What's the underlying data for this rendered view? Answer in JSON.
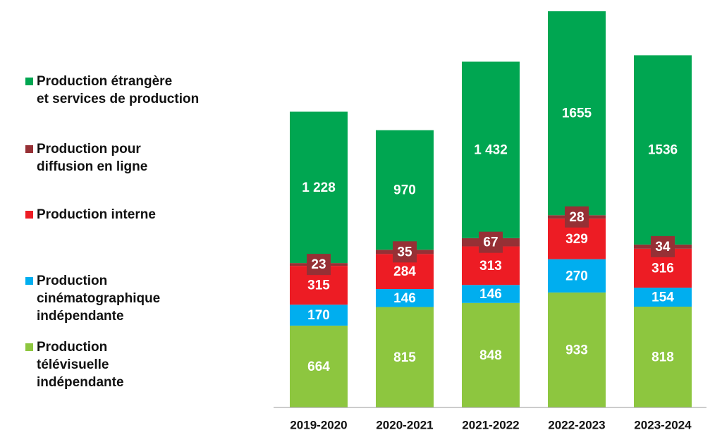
{
  "chart_data": {
    "type": "stacked_bar",
    "categories": [
      "2019-2020",
      "2020-2021",
      "2021-2022",
      "2022-2023",
      "2023-2024"
    ],
    "series": [
      {
        "name": "Production télévisuelle indépendante",
        "color": "#8dc63f",
        "values": [
          664,
          815,
          848,
          933,
          818
        ]
      },
      {
        "name": "Production cinématographique indépendante",
        "color": "#00aeef",
        "values": [
          170,
          146,
          146,
          270,
          154
        ]
      },
      {
        "name": "Production interne",
        "color": "#ed1c24",
        "values": [
          315,
          284,
          313,
          329,
          316
        ]
      },
      {
        "name": "Production pour diffusion en ligne",
        "color": "#963035",
        "values": [
          23,
          35,
          67,
          28,
          34
        ]
      },
      {
        "name": "Production étrangère et services de production",
        "color": "#00a651",
        "values": [
          1228,
          970,
          1432,
          1655,
          1536
        ],
        "value_labels": [
          "1 228",
          "970",
          "1 432",
          "1655",
          "1536"
        ]
      }
    ]
  }
}
